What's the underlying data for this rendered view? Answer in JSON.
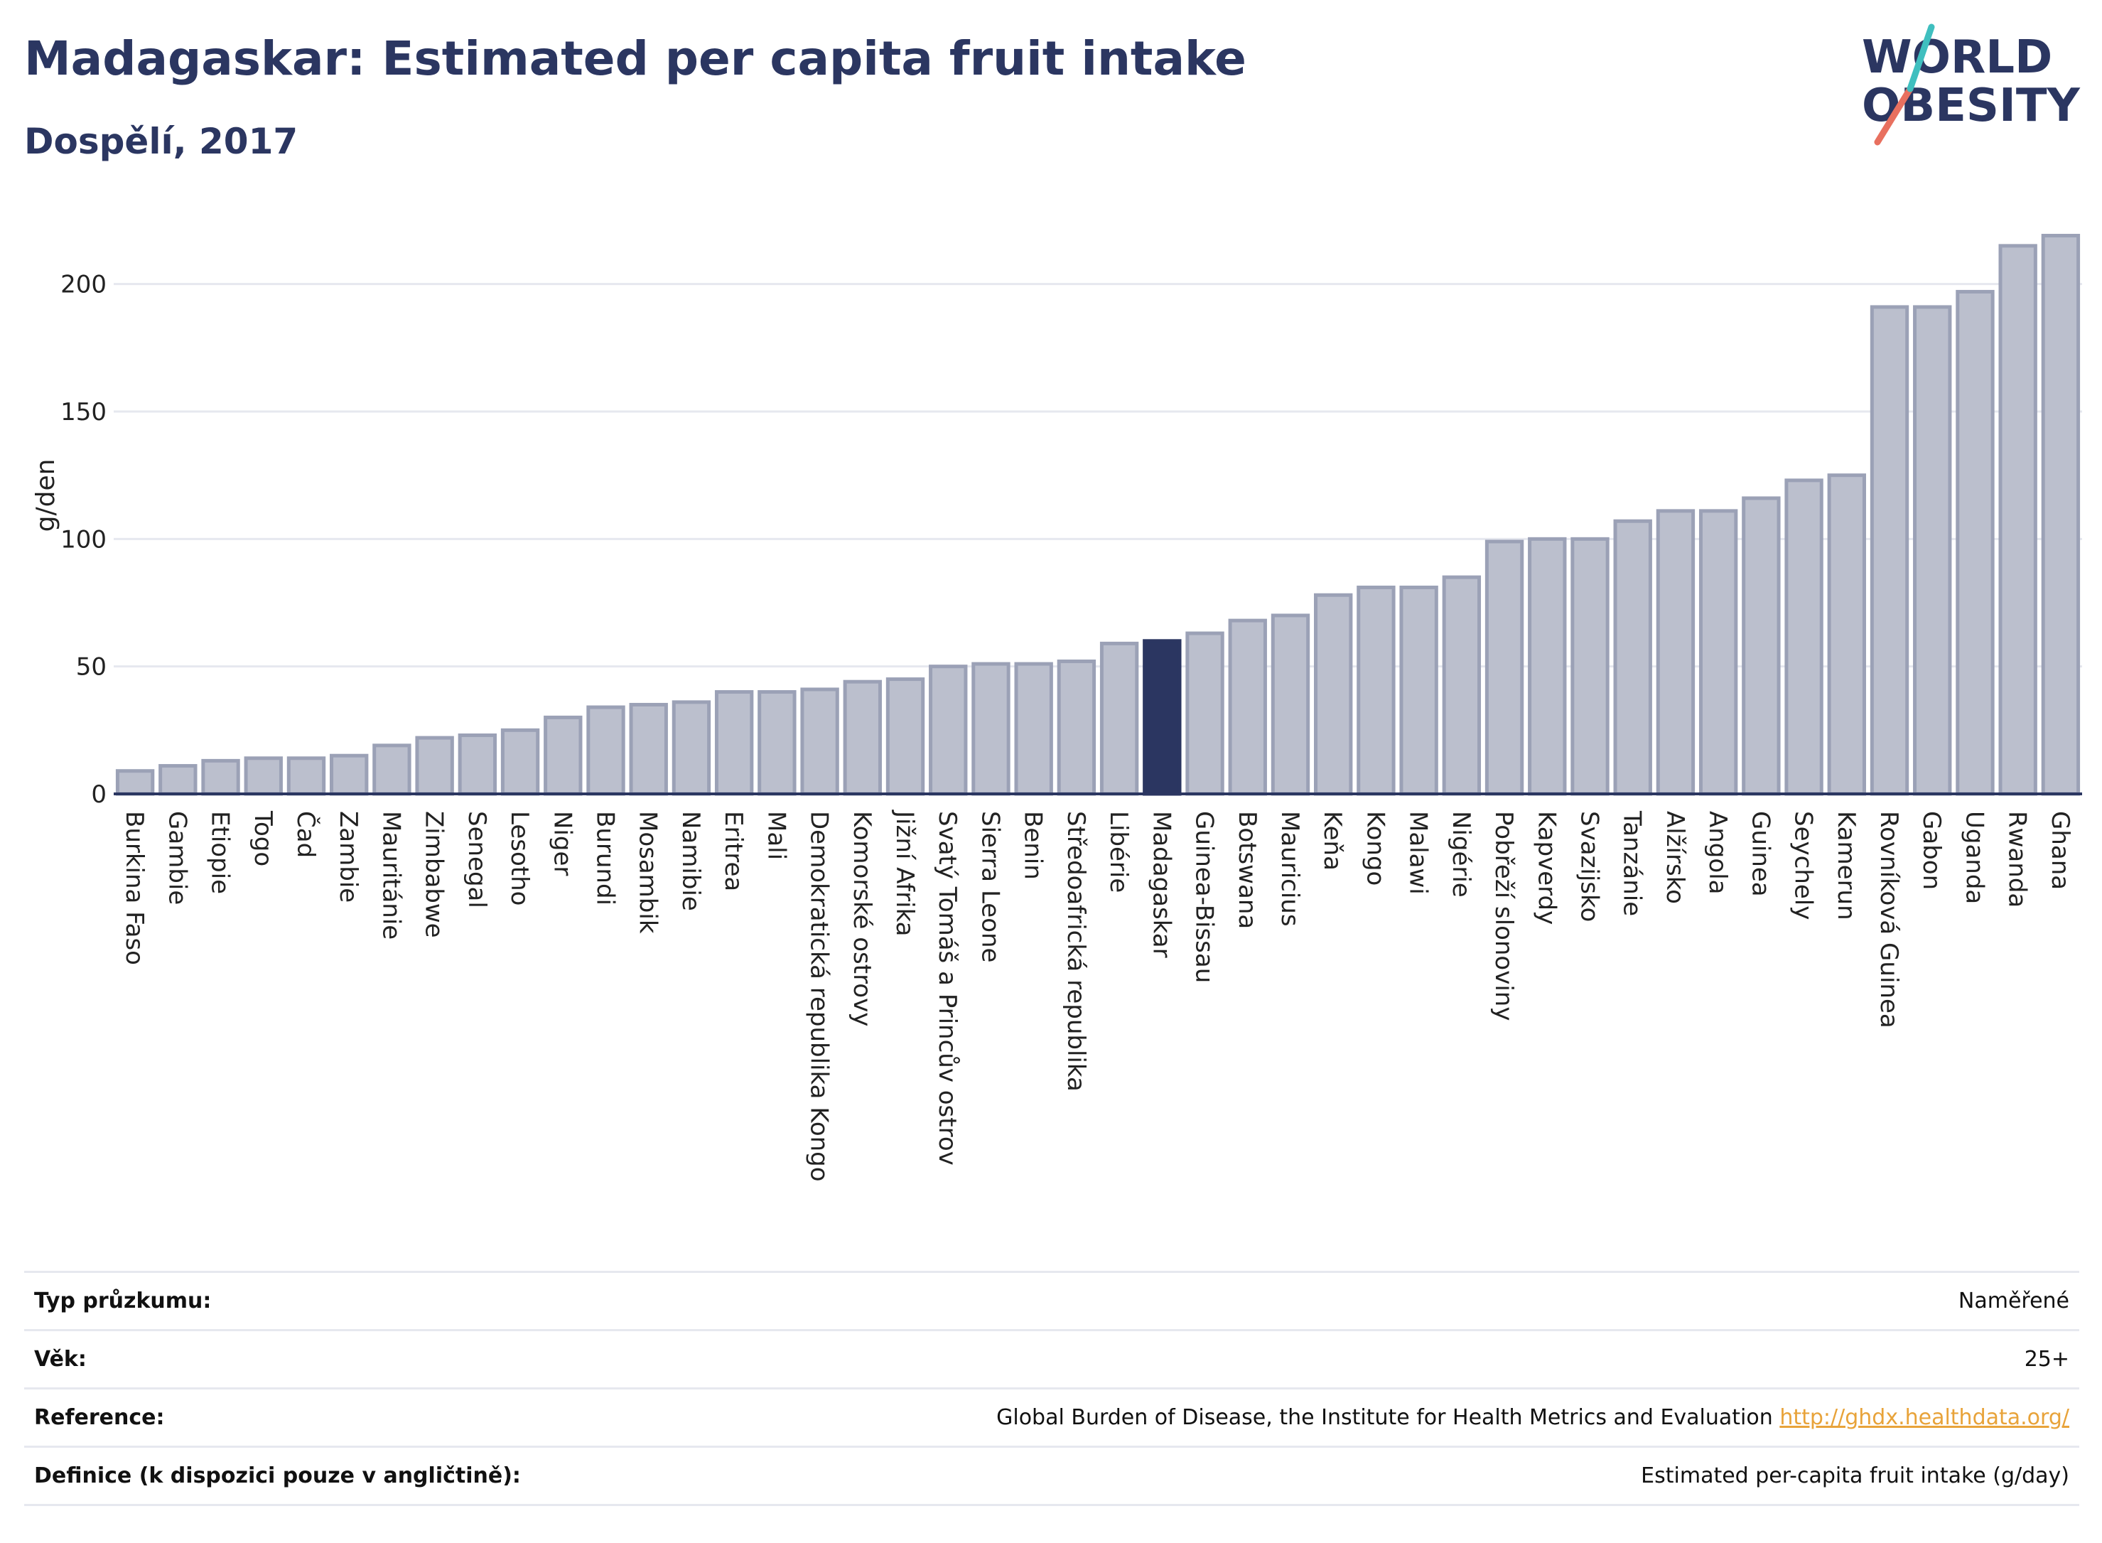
{
  "title": "Madagaskar: Estimated per capita fruit intake",
  "subtitle": "Dospělí, 2017",
  "logo": {
    "line1": "WORLD",
    "line2": "OBESITY",
    "accent_color": "#e8705f",
    "accent2_color": "#3fbfbf"
  },
  "colors": {
    "bar": "#bbbfcd",
    "bar_stroke": "#9ba1b6",
    "highlight": "#2b3661",
    "grid": "#e6e8ef",
    "text": "#2b3661"
  },
  "chart_data": {
    "type": "bar",
    "ylabel": "g/den",
    "xlabel": "",
    "ylim": [
      0,
      225
    ],
    "yticks": [
      0,
      50,
      100,
      150,
      200
    ],
    "highlight": "Madagaskar",
    "categories": [
      "Burkina Faso",
      "Gambie",
      "Etiopie",
      "Togo",
      "Čad",
      "Zambie",
      "Mauritánie",
      "Zimbabwe",
      "Senegal",
      "Lesotho",
      "Niger",
      "Burundi",
      "Mosambik",
      "Namibie",
      "Eritrea",
      "Mali",
      "Demokratická republika Kongo",
      "Komorské ostrovy",
      "Jižní Afrika",
      "Svatý Tomáš a Princův ostrov",
      "Sierra Leone",
      "Benin",
      "Středoafrická republika",
      "Libérie",
      "Madagaskar",
      "Guinea-Bissau",
      "Botswana",
      "Mauricius",
      "Keňa",
      "Kongo",
      "Malawi",
      "Nigérie",
      "Pobřeží slonoviny",
      "Kapverdy",
      "Svazijsko",
      "Tanzánie",
      "Alžírsko",
      "Angola",
      "Guinea",
      "Seychely",
      "Kamerun",
      "Rovníková Guinea",
      "Gabon",
      "Uganda",
      "Rwanda",
      "Ghana"
    ],
    "values": [
      9,
      11,
      13,
      14,
      14,
      15,
      19,
      22,
      23,
      25,
      30,
      34,
      35,
      36,
      40,
      40,
      41,
      44,
      45,
      50,
      51,
      51,
      52,
      59,
      60,
      63,
      68,
      70,
      78,
      81,
      81,
      85,
      99,
      100,
      100,
      107,
      111,
      111,
      116,
      123,
      125,
      191,
      191,
      197,
      215,
      219
    ]
  },
  "info": [
    {
      "key": "Typ průzkumu:",
      "value": "Naměřené"
    },
    {
      "key": "Věk:",
      "value": "25+"
    },
    {
      "key": "Reference:",
      "value": "Global Burden of Disease, the Institute for Health Metrics and Evaluation",
      "link": "http://ghdx.healthdata.org/"
    },
    {
      "key": "Definice (k dispozici pouze v angličtině):",
      "value": "Estimated per-capita fruit intake (g/day)"
    }
  ]
}
